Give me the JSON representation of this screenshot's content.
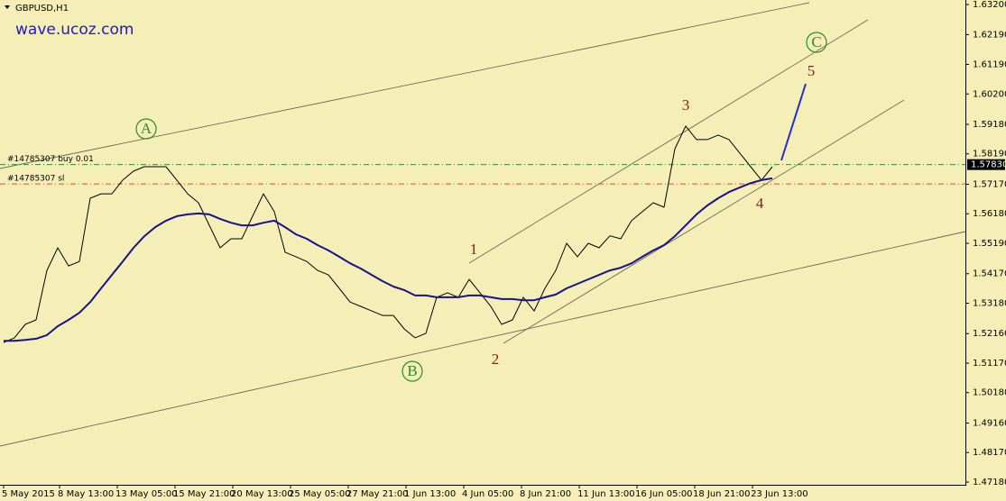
{
  "chart_data": {
    "type": "line",
    "title": "GBPUSD,H1",
    "watermark": "wave.ucoz.com",
    "x": [
      0,
      1,
      2,
      3,
      4,
      5,
      6,
      7,
      8,
      9,
      10,
      11,
      12,
      13,
      14,
      15,
      16,
      17,
      18,
      19,
      20,
      21,
      22,
      23,
      24,
      25,
      26,
      27,
      28,
      29,
      30,
      31,
      32,
      33,
      34,
      35,
      36,
      37,
      38,
      39,
      40,
      41,
      42,
      43,
      44,
      45,
      46,
      47,
      48,
      49,
      50,
      51,
      52,
      53,
      54,
      55,
      56,
      57,
      58,
      59,
      60,
      61,
      62,
      63,
      64,
      65,
      66,
      67,
      68,
      69,
      70,
      71
    ],
    "xlim": [
      0,
      88.83
    ],
    "xticks": [
      {
        "value": 0,
        "label": "5 May 2015"
      },
      {
        "value": 5.17,
        "label": "8 May 13:00"
      },
      {
        "value": 10.5,
        "label": "13 May 05:00"
      },
      {
        "value": 15.83,
        "label": "15 May 21:00"
      },
      {
        "value": 21.17,
        "label": "20 May 13:00"
      },
      {
        "value": 26.5,
        "label": "25 May 05:00"
      },
      {
        "value": 31.83,
        "label": "27 May 21:00"
      },
      {
        "value": 37.17,
        "label": "1 Jun 13:00"
      },
      {
        "value": 42.5,
        "label": "4 Jun 05:00"
      },
      {
        "value": 47.83,
        "label": "8 Jun 21:00"
      },
      {
        "value": 53.17,
        "label": "11 Jun 13:00"
      },
      {
        "value": 58.5,
        "label": "16 Jun 05:00"
      },
      {
        "value": 63.83,
        "label": "18 Jun 21:00"
      },
      {
        "value": 69.17,
        "label": "23 Jun 13:00"
      }
    ],
    "ylim": [
      1.4718,
      1.632
    ],
    "yticks": [
      {
        "value": 1.632,
        "label": "1.63200"
      },
      {
        "value": 1.6219,
        "label": "1.62190"
      },
      {
        "value": 1.6119,
        "label": "1.61190"
      },
      {
        "value": 1.602,
        "label": "1.60200"
      },
      {
        "value": 1.5918,
        "label": "1.59180"
      },
      {
        "value": 1.5819,
        "label": "1.58190"
      },
      {
        "value": 1.5717,
        "label": "1.57170"
      },
      {
        "value": 1.5618,
        "label": "1.56180"
      },
      {
        "value": 1.5519,
        "label": "1.55190"
      },
      {
        "value": 1.5417,
        "label": "1.54170"
      },
      {
        "value": 1.5318,
        "label": "1.53180"
      },
      {
        "value": 1.5216,
        "label": "1.52160"
      },
      {
        "value": 1.5117,
        "label": "1.51170"
      },
      {
        "value": 1.5018,
        "label": "1.50180"
      },
      {
        "value": 1.4916,
        "label": "1.49160"
      },
      {
        "value": 1.4817,
        "label": "1.48170"
      },
      {
        "value": 1.4718,
        "label": "1.47180"
      }
    ],
    "series": [
      {
        "color": "#000000",
        "values": [
          1.5186,
          1.5202,
          1.5247,
          1.5262,
          1.5428,
          1.5504,
          1.5443,
          1.5458,
          1.567,
          1.5685,
          1.5685,
          1.5731,
          1.5761,
          1.5776,
          1.5776,
          1.5776,
          1.5731,
          1.5685,
          1.5655,
          1.5579,
          1.5504,
          1.5534,
          1.5534,
          1.561,
          1.5685,
          1.5625,
          1.5489,
          1.5474,
          1.5458,
          1.5428,
          1.5413,
          1.5368,
          1.5322,
          1.5307,
          1.5292,
          1.5277,
          1.5277,
          1.5232,
          1.5202,
          1.5217,
          1.5338,
          1.5353,
          1.5338,
          1.5398,
          1.5353,
          1.5307,
          1.5247,
          1.5262,
          1.5338,
          1.5292,
          1.5368,
          1.5428,
          1.5519,
          1.5474,
          1.5519,
          1.5504,
          1.5544,
          1.5534,
          1.5595,
          1.5625,
          1.5655,
          1.564,
          1.5836,
          1.5912,
          1.5867,
          1.5867,
          1.5882,
          1.5867,
          1.5821,
          1.5776,
          1.5731,
          1.5776
        ]
      },
      {
        "color": "#14148c",
        "values": [
          1.5192,
          1.5192,
          1.5195,
          1.5199,
          1.5211,
          1.5241,
          1.5262,
          1.5286,
          1.5322,
          1.5368,
          1.5413,
          1.5458,
          1.5504,
          1.5543,
          1.5573,
          1.5595,
          1.561,
          1.5616,
          1.5619,
          1.5616,
          1.5601,
          1.5588,
          1.5579,
          1.5579,
          1.5588,
          1.5595,
          1.5573,
          1.5549,
          1.5534,
          1.5513,
          1.5495,
          1.5474,
          1.5452,
          1.5434,
          1.5413,
          1.5392,
          1.5374,
          1.5362,
          1.5344,
          1.5344,
          1.5338,
          1.5338,
          1.5338,
          1.5344,
          1.5344,
          1.5338,
          1.5332,
          1.5332,
          1.5328,
          1.5328,
          1.5338,
          1.5347,
          1.5368,
          1.5383,
          1.5398,
          1.5413,
          1.5428,
          1.5437,
          1.5452,
          1.5474,
          1.5495,
          1.5513,
          1.5543,
          1.5579,
          1.5616,
          1.5646,
          1.567,
          1.5691,
          1.5706,
          1.5721,
          1.5731,
          1.5737
        ]
      }
    ],
    "projection": {
      "color": "#1f2fd0",
      "x": [
        71.83,
        74.08
      ],
      "values": [
        1.5797,
        1.6054
      ]
    },
    "levels": [
      {
        "label": "#14785307 buy 0.01",
        "value": 1.5783,
        "color": "#2e8b2e"
      },
      {
        "label": "#14785307 sl",
        "value": 1.5718,
        "color": "#e0502a"
      }
    ],
    "current_price": {
      "value": 1.5783,
      "label": "1.57830"
    },
    "wave_labels": [
      "A",
      "B",
      "C",
      "1",
      "2",
      "3",
      "4",
      "5"
    ]
  }
}
